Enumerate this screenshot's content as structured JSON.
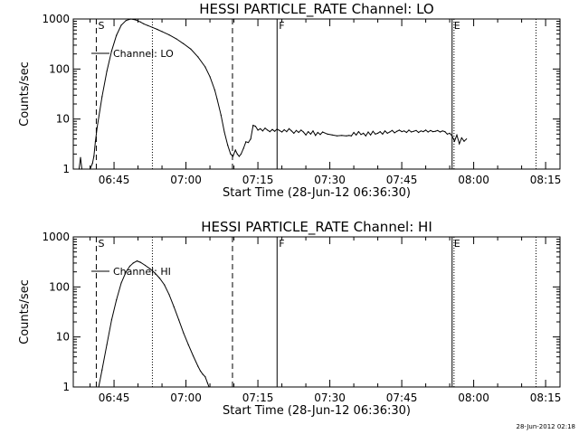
{
  "footer_timestamp": "28-Jun-2012 02:18",
  "chart_data": [
    {
      "type": "line",
      "title": "HESSI PARTICLE_RATE Channel: LO",
      "xlabel": "Start Time (28-Jun-12 06:36:30)",
      "ylabel": "Counts/sec",
      "x_unit": "minutes since 06:36:30",
      "xlim": [
        0,
        101.5
      ],
      "ylim": [
        1,
        1000
      ],
      "y_scale": "log",
      "y_ticks": [
        1,
        10,
        100,
        1000
      ],
      "y_tick_labels": [
        "1",
        "10",
        "100",
        "1000"
      ],
      "x_ticks": [
        8.5,
        23.5,
        38.5,
        53.5,
        68.5,
        83.5,
        98.5
      ],
      "x_tick_labels": [
        "06:45",
        "07:00",
        "07:15",
        "07:30",
        "07:45",
        "08:00",
        "08:15"
      ],
      "legend": [
        "Channel: LO"
      ],
      "series": [
        {
          "name": "Channel: LO",
          "x": [
            1.2,
            1.5,
            1.8,
            3.5,
            4.0,
            4.3,
            4.6,
            5.0,
            6.0,
            7.0,
            8.0,
            9.0,
            10.0,
            11.0,
            12.0,
            13.0,
            14.0,
            14.7,
            15.5,
            16.5,
            17.5,
            18.5,
            20.0,
            21.5,
            23.0,
            24.5,
            26.0,
            27.5,
            28.5,
            29.5,
            30.0,
            30.8,
            31.5,
            32.2,
            32.8,
            33.3,
            33.8,
            34.2,
            34.6,
            35.0,
            35.5,
            36.0,
            36.5,
            37.0,
            37.5,
            38.0,
            38.5,
            39.0,
            39.5,
            40.0,
            40.5,
            41.0,
            41.5,
            42.0,
            42.5,
            43.0,
            43.5,
            44.0,
            44.5,
            45.0,
            45.5,
            46.0,
            46.5,
            47.0,
            47.5,
            48.0,
            48.5,
            49.0,
            49.5,
            50.0,
            50.5,
            51.0,
            51.5,
            52.0,
            53.0,
            54.0,
            55.0,
            56.0,
            57.0,
            57.5,
            58.0,
            58.5,
            59.0,
            59.5,
            60.0,
            60.5,
            61.0,
            61.5,
            62.0,
            62.5,
            63.0,
            63.5,
            64.0,
            64.5,
            65.0,
            65.5,
            66.0,
            66.5,
            67.0,
            67.5,
            68.0,
            68.5,
            69.0,
            69.5,
            70.0,
            70.5,
            71.0,
            71.5,
            72.0,
            72.5,
            73.0,
            73.5,
            74.0,
            74.5,
            75.0,
            75.5,
            76.0,
            76.5,
            77.0,
            77.5,
            78.0,
            78.5,
            79.0,
            79.5,
            80.0,
            80.5,
            81.0,
            81.5,
            82.0
          ],
          "y": [
            1.0,
            1.7,
            1.0,
            1.0,
            1.3,
            1.8,
            3.5,
            7,
            28,
            90,
            230,
            470,
            750,
            930,
            1000,
            960,
            870,
            800,
            740,
            680,
            620,
            560,
            480,
            400,
            320,
            250,
            175,
            110,
            70,
            38,
            25,
            12,
            5.5,
            3.0,
            2.0,
            1.8,
            2.4,
            2.0,
            1.8,
            2.0,
            2.6,
            3.5,
            3.4,
            4.0,
            7.5,
            7.2,
            6.0,
            6.4,
            5.8,
            6.6,
            6.0,
            5.6,
            6.2,
            5.7,
            6.3,
            5.9,
            5.5,
            6.1,
            5.6,
            6.4,
            5.8,
            5.2,
            5.9,
            5.4,
            6.0,
            5.5,
            4.8,
            5.6,
            5.0,
            5.8,
            4.7,
            5.4,
            4.9,
            5.5,
            5.0,
            4.8,
            4.6,
            4.7,
            4.6,
            4.7,
            4.6,
            5.4,
            4.8,
            5.6,
            4.9,
            5.2,
            4.6,
            5.5,
            4.8,
            5.7,
            5.0,
            5.2,
            5.6,
            5.0,
            5.8,
            5.2,
            5.5,
            5.9,
            5.3,
            5.7,
            6.0,
            5.6,
            5.8,
            5.4,
            6.0,
            5.5,
            5.7,
            5.9,
            5.4,
            5.8,
            5.6,
            6.0,
            5.5,
            5.9,
            5.6,
            5.7,
            5.9,
            5.5,
            5.8,
            5.6,
            5.0,
            5.2,
            4.6,
            3.6,
            4.8,
            3.2,
            4.2,
            3.6,
            4.0
          ]
        }
      ],
      "vertical_markers": [
        {
          "label": "S",
          "x": 4.8,
          "style": "dashed"
        },
        {
          "label": "",
          "x": 16.5,
          "style": "dotted"
        },
        {
          "label": "",
          "x": 33.2,
          "style": "dashed"
        },
        {
          "label": "F",
          "x": 42.5,
          "style": "solid"
        },
        {
          "label": "E",
          "x": 79.0,
          "style": "solid"
        },
        {
          "label": "",
          "x": 79.4,
          "style": "dotted"
        },
        {
          "label": "",
          "x": 96.5,
          "style": "dotted"
        }
      ],
      "legend_position": "top-left"
    },
    {
      "type": "line",
      "title": "HESSI PARTICLE_RATE Channel: HI",
      "xlabel": "Start Time (28-Jun-12 06:36:30)",
      "ylabel": "Counts/sec",
      "x_unit": "minutes since 06:36:30",
      "xlim": [
        0,
        101.5
      ],
      "ylim": [
        1,
        1000
      ],
      "y_scale": "log",
      "y_ticks": [
        1,
        10,
        100,
        1000
      ],
      "y_tick_labels": [
        "1",
        "10",
        "100",
        "1000"
      ],
      "x_ticks": [
        8.5,
        23.5,
        38.5,
        53.5,
        68.5,
        83.5,
        98.5
      ],
      "x_tick_labels": [
        "06:45",
        "07:00",
        "07:15",
        "07:30",
        "07:45",
        "08:00",
        "08:15"
      ],
      "legend": [
        "Channel: HI"
      ],
      "series": [
        {
          "name": "Channel: HI",
          "x": [
            5.3,
            6.0,
            7.0,
            8.0,
            9.0,
            10.0,
            11.0,
            11.8,
            12.5,
            13.3,
            14.0,
            15.0,
            16.0,
            17.0,
            18.0,
            19.0,
            20.0,
            21.0,
            22.0,
            23.0,
            24.0,
            25.0,
            26.0,
            26.5,
            27.0,
            27.5,
            28.0,
            28.3
          ],
          "y": [
            1.0,
            2.2,
            7,
            22,
            55,
            120,
            200,
            260,
            300,
            330,
            310,
            270,
            230,
            190,
            150,
            110,
            70,
            40,
            22,
            12,
            7,
            4.2,
            2.6,
            2.1,
            1.8,
            1.6,
            1.2,
            1.0
          ]
        }
      ],
      "vertical_markers": [
        {
          "label": "S",
          "x": 4.8,
          "style": "dashed"
        },
        {
          "label": "",
          "x": 16.5,
          "style": "dotted"
        },
        {
          "label": "",
          "x": 33.2,
          "style": "dashed"
        },
        {
          "label": "F",
          "x": 42.5,
          "style": "solid"
        },
        {
          "label": "E",
          "x": 79.0,
          "style": "solid"
        },
        {
          "label": "",
          "x": 79.4,
          "style": "dotted"
        },
        {
          "label": "",
          "x": 96.5,
          "style": "dotted"
        }
      ],
      "legend_position": "top-left"
    }
  ]
}
